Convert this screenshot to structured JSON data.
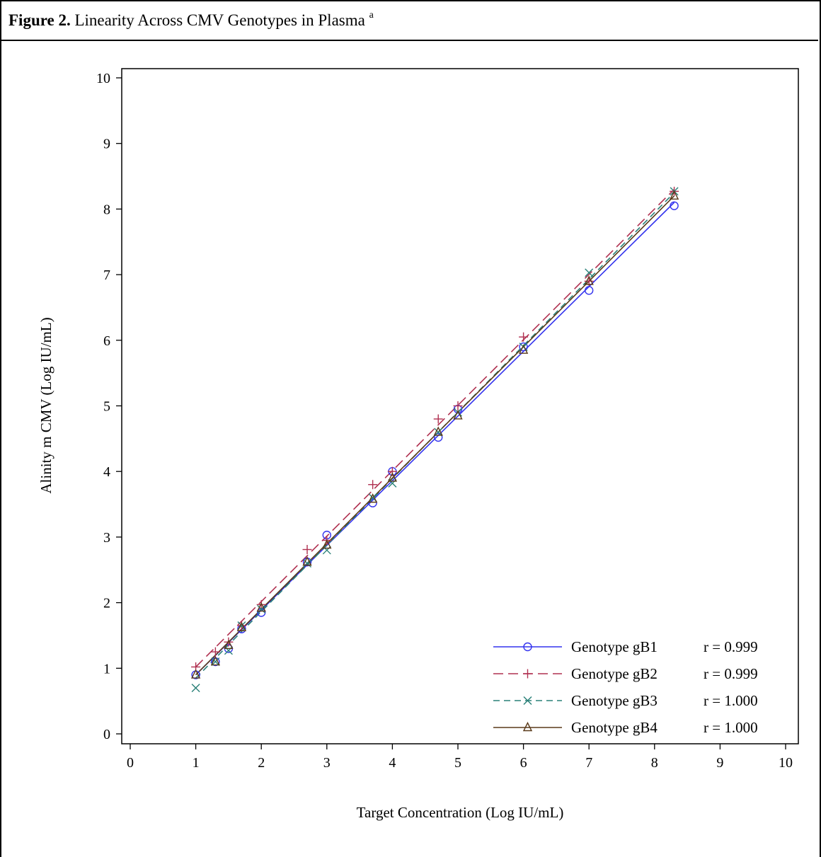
{
  "caption": {
    "label": "Figure 2.",
    "text": " Linearity Across CMV Genotypes in Plasma ",
    "superscript": "a"
  },
  "chart_data": {
    "type": "scatter",
    "xlabel": "Target Concentration (Log IU/mL)",
    "ylabel": "Alinity m CMV (Log IU/mL)",
    "xlim": [
      0,
      10
    ],
    "ylim": [
      0,
      10
    ],
    "xticks": [
      0,
      1,
      2,
      3,
      4,
      5,
      6,
      7,
      8,
      9,
      10
    ],
    "yticks": [
      0,
      1,
      2,
      3,
      4,
      5,
      6,
      7,
      8,
      9,
      10
    ],
    "grid": false,
    "legend_position": "bottom-right",
    "x": [
      1.0,
      1.3,
      1.5,
      1.7,
      2.0,
      2.7,
      3.0,
      3.7,
      4.0,
      4.7,
      5.0,
      6.0,
      7.0,
      8.3
    ],
    "series": [
      {
        "name": "Genotype gB1",
        "r_label": "r = 0.999",
        "marker": "circle",
        "color": "#3333ee",
        "dash": "solid",
        "values": [
          0.9,
          1.1,
          1.3,
          1.6,
          1.85,
          2.62,
          3.03,
          3.52,
          4.0,
          4.52,
          4.95,
          5.9,
          6.76,
          8.05
        ],
        "fit_start": 0.9,
        "fit_end": 8.1
      },
      {
        "name": "Genotype gB2",
        "r_label": "r = 0.999",
        "marker": "plus",
        "color": "#b03050",
        "dash": "long-dash",
        "values": [
          1.02,
          1.25,
          1.4,
          1.65,
          1.97,
          2.81,
          2.95,
          3.8,
          4.0,
          4.8,
          5.0,
          6.05,
          6.9,
          8.27
        ],
        "fit_start": 1.02,
        "fit_end": 8.3
      },
      {
        "name": "Genotype gB3",
        "r_label": "r = 1.000",
        "marker": "x",
        "color": "#2a8078",
        "dash": "dash",
        "values": [
          0.7,
          1.1,
          1.27,
          1.65,
          1.9,
          2.6,
          2.8,
          3.6,
          3.82,
          4.6,
          4.9,
          5.9,
          7.03,
          8.27
        ],
        "fit_start": 0.85,
        "fit_end": 8.25
      },
      {
        "name": "Genotype gB4",
        "r_label": "r = 1.000",
        "marker": "triangle",
        "color": "#5a3a1a",
        "dash": "solid",
        "values": [
          0.9,
          1.1,
          1.35,
          1.62,
          1.92,
          2.62,
          2.88,
          3.58,
          3.9,
          4.6,
          4.85,
          5.85,
          6.9,
          8.2
        ],
        "fit_start": 0.9,
        "fit_end": 8.2
      }
    ]
  }
}
